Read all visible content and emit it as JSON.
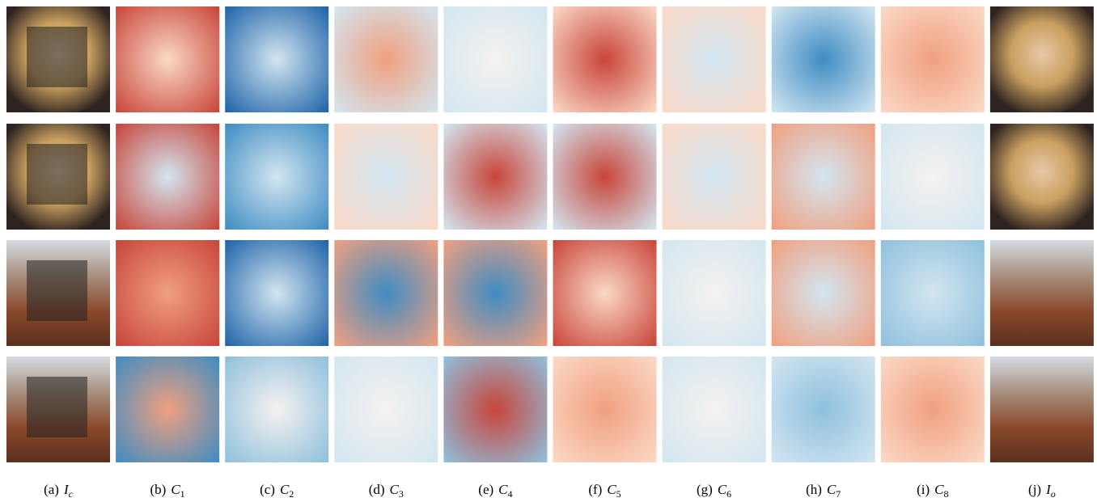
{
  "figure": {
    "captions": [
      {
        "tag": "(a)",
        "var": "I",
        "sub": "c"
      },
      {
        "tag": "(b)",
        "var": "C",
        "sub": "1"
      },
      {
        "tag": "(c)",
        "var": "C",
        "sub": "2"
      },
      {
        "tag": "(d)",
        "var": "C",
        "sub": "3"
      },
      {
        "tag": "(e)",
        "var": "C",
        "sub": "4"
      },
      {
        "tag": "(f)",
        "var": "C",
        "sub": "5"
      },
      {
        "tag": "(g)",
        "var": "C",
        "sub": "6"
      },
      {
        "tag": "(h)",
        "var": "C",
        "sub": "7"
      },
      {
        "tag": "(i)",
        "var": "C",
        "sub": "8"
      },
      {
        "tag": "(j)",
        "var": "I",
        "sub": "o"
      }
    ]
  }
}
